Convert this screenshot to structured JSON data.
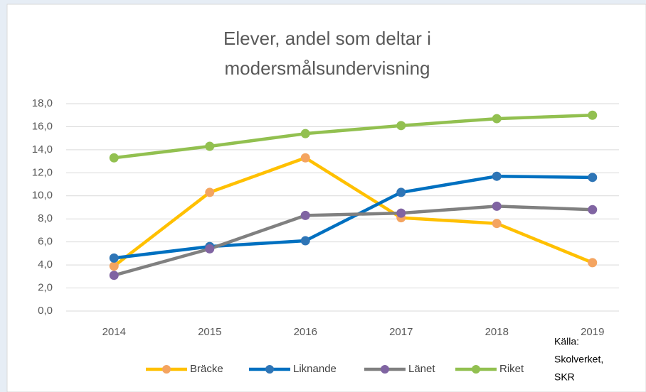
{
  "chart_data": {
    "type": "line",
    "title": [
      "Elever, andel som deltar i",
      "modersmålsundervisning"
    ],
    "categories": [
      "2014",
      "2015",
      "2016",
      "2017",
      "2018",
      "2019"
    ],
    "series": [
      {
        "name": "Bräcke",
        "color": "#ffc000",
        "marker_color": "#f4a460",
        "values": [
          3.9,
          10.3,
          13.3,
          8.1,
          7.6,
          4.2
        ]
      },
      {
        "name": "Liknande",
        "color": "#0070c0",
        "marker_color": "#2e75b6",
        "values": [
          4.6,
          5.6,
          6.1,
          10.3,
          11.7,
          11.6
        ]
      },
      {
        "name": "Länet",
        "color": "#808080",
        "marker_color": "#8064a2",
        "values": [
          3.1,
          5.4,
          8.3,
          8.5,
          9.1,
          8.8
        ]
      },
      {
        "name": "Riket",
        "color": "#92c050",
        "marker_color": "#92c050",
        "values": [
          13.3,
          14.3,
          15.4,
          16.1,
          16.7,
          17.0
        ]
      }
    ],
    "ylim": [
      0,
      18
    ],
    "yticks": [
      {
        "value": 0,
        "label": "0,0"
      },
      {
        "value": 2,
        "label": "2,0"
      },
      {
        "value": 4,
        "label": "4,0"
      },
      {
        "value": 6,
        "label": "6,0"
      },
      {
        "value": 8,
        "label": "8,0"
      },
      {
        "value": 10,
        "label": "10,0"
      },
      {
        "value": 12,
        "label": "12,0"
      },
      {
        "value": 14,
        "label": "14,0"
      },
      {
        "value": 16,
        "label": "16,0"
      },
      {
        "value": 18,
        "label": "18,0"
      }
    ],
    "grid": true,
    "legend": "bottom",
    "annotation": [
      "Källa:",
      "Skolverket,",
      "SKR"
    ]
  }
}
